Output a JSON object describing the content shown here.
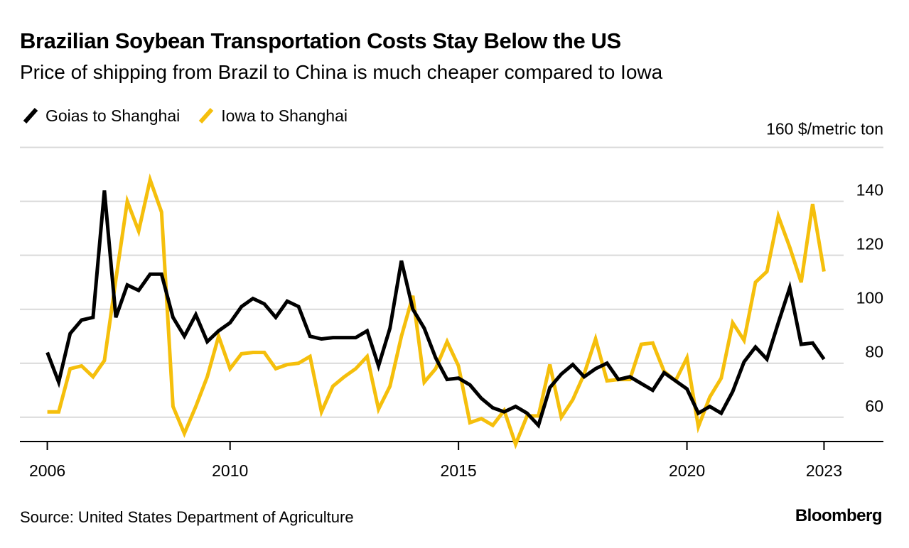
{
  "title": "Brazilian Soybean Transportation Costs Stay Below the US",
  "subtitle": "Price of shipping from Brazil to China is much cheaper compared to Iowa",
  "source": "Source: United States Department of Agriculture",
  "brand": "Bloomberg",
  "colors": {
    "goias": "#000000",
    "iowa": "#f5bf0c",
    "grid": "#d9d9d9",
    "axis": "#000000"
  },
  "chart_data": {
    "type": "line",
    "title": "Brazilian Soybean Transportation Costs Stay Below the US",
    "subtitle": "Price of shipping from Brazil to China is much cheaper compared to Iowa",
    "xlabel": "",
    "ylabel": "$/metric ton",
    "y_unit_label": "160 $/metric ton",
    "xlim": [
      2005.4,
      2024.3
    ],
    "ylim": [
      51,
      162
    ],
    "y_gridlines": [
      60,
      80,
      100,
      120,
      140,
      160
    ],
    "y_tick_labels": [
      "60",
      "80",
      "100",
      "120",
      "140"
    ],
    "x_ticks": [
      2006,
      2010,
      2015,
      2020,
      2023
    ],
    "x_tick_labels": [
      "2006",
      "2010",
      "2015",
      "2020",
      "2023"
    ],
    "legend_position": "top-left",
    "series": [
      {
        "name": "Goias to Shanghai",
        "color": "#000000",
        "x": [
          2006.0,
          2006.25,
          2006.5,
          2006.75,
          2007.0,
          2007.25,
          2007.5,
          2007.75,
          2008.0,
          2008.25,
          2008.5,
          2008.75,
          2009.0,
          2009.25,
          2009.5,
          2009.75,
          2010.0,
          2010.25,
          2010.5,
          2010.75,
          2011.0,
          2011.25,
          2011.5,
          2011.75,
          2012.0,
          2012.25,
          2012.5,
          2012.75,
          2013.0,
          2013.25,
          2013.5,
          2013.75,
          2014.0,
          2014.25,
          2014.5,
          2014.75,
          2015.0,
          2015.25,
          2015.5,
          2015.75,
          2016.0,
          2016.25,
          2016.5,
          2016.75,
          2017.0,
          2017.25,
          2017.5,
          2017.75,
          2018.0,
          2018.25,
          2018.5,
          2018.75,
          2019.0,
          2019.25,
          2019.5,
          2019.75,
          2020.0,
          2020.25,
          2020.5,
          2020.75,
          2021.0,
          2021.25,
          2021.5,
          2021.75,
          2022.0,
          2022.25,
          2022.5,
          2022.75,
          2023.0
        ],
        "values": [
          84,
          73,
          91,
          96,
          97,
          144,
          97,
          109,
          107,
          113,
          113,
          97,
          90,
          98,
          88,
          92,
          95,
          101,
          104,
          102,
          97,
          103,
          101,
          90,
          89,
          89.5,
          89.5,
          89.5,
          92,
          79,
          93,
          118,
          100,
          93,
          82,
          74,
          74.5,
          72,
          67,
          63.5,
          62,
          64,
          61.5,
          57,
          71,
          76,
          79.5,
          75,
          78,
          80,
          74,
          75,
          72.5,
          70,
          76.5,
          73.5,
          70.5,
          61.5,
          64,
          61.5,
          69.5,
          80.5,
          86,
          81.5,
          95,
          108,
          87,
          87.5,
          81.5
        ]
      },
      {
        "name": "Iowa to Shanghai",
        "color": "#f5bf0c",
        "x": [
          2006.0,
          2006.25,
          2006.5,
          2006.75,
          2007.0,
          2007.25,
          2007.5,
          2007.75,
          2008.0,
          2008.25,
          2008.5,
          2008.75,
          2009.0,
          2009.25,
          2009.5,
          2009.75,
          2010.0,
          2010.25,
          2010.5,
          2010.75,
          2011.0,
          2011.25,
          2011.5,
          2011.75,
          2012.0,
          2012.25,
          2012.5,
          2012.75,
          2013.0,
          2013.25,
          2013.5,
          2013.75,
          2014.0,
          2014.25,
          2014.5,
          2014.75,
          2015.0,
          2015.25,
          2015.5,
          2015.75,
          2016.0,
          2016.25,
          2016.5,
          2016.75,
          2017.0,
          2017.25,
          2017.5,
          2017.75,
          2018.0,
          2018.25,
          2018.5,
          2018.75,
          2019.0,
          2019.25,
          2019.5,
          2019.75,
          2020.0,
          2020.25,
          2020.5,
          2020.75,
          2021.0,
          2021.25,
          2021.5,
          2021.75,
          2022.0,
          2022.25,
          2022.5,
          2022.75,
          2023.0
        ],
        "values": [
          62,
          62,
          78,
          79,
          75,
          81,
          111,
          140,
          129,
          148,
          136,
          64,
          54,
          64,
          75,
          90,
          78,
          83.5,
          84,
          84,
          78,
          79.5,
          80,
          82.5,
          62,
          71.5,
          75,
          78,
          82.5,
          63,
          71.5,
          90,
          105,
          73,
          78,
          88,
          79,
          58,
          59.5,
          57,
          62.5,
          50,
          60.5,
          60.5,
          79.5,
          60,
          66.5,
          76,
          89,
          73.5,
          74,
          74,
          87,
          87.5,
          77,
          73.5,
          82,
          56.5,
          67.5,
          74.5,
          95,
          88.5,
          110,
          114,
          134.5,
          123,
          110,
          139,
          114
        ]
      }
    ]
  }
}
